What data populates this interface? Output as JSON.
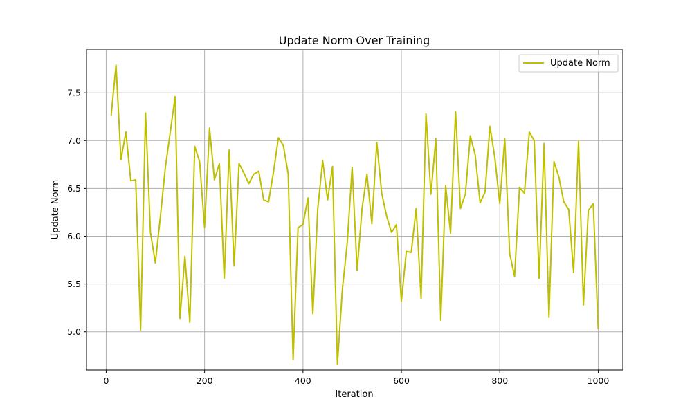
{
  "chart_data": {
    "type": "line",
    "title": "Update Norm Over Training",
    "xlabel": "Iteration",
    "ylabel": "Update Norm",
    "xlim": [
      -40,
      1050
    ],
    "ylim": [
      4.6,
      7.95
    ],
    "xticks": [
      0,
      200,
      400,
      600,
      800,
      1000
    ],
    "yticks": [
      5.0,
      5.5,
      6.0,
      6.5,
      7.0,
      7.5
    ],
    "xtick_labels": [
      "0",
      "200",
      "400",
      "600",
      "800",
      "1000"
    ],
    "ytick_labels": [
      "5.0",
      "5.5",
      "6.0",
      "6.5",
      "7.0",
      "7.5"
    ],
    "grid": true,
    "legend_position": "top-right",
    "series": [
      {
        "name": "Update Norm",
        "color": "#bfbf00",
        "x": [
          10,
          20,
          30,
          40,
          50,
          60,
          70,
          80,
          90,
          100,
          110,
          120,
          130,
          140,
          150,
          160,
          170,
          180,
          190,
          200,
          210,
          220,
          230,
          240,
          250,
          260,
          270,
          280,
          290,
          300,
          310,
          320,
          330,
          340,
          350,
          360,
          370,
          380,
          390,
          400,
          410,
          420,
          430,
          440,
          450,
          460,
          470,
          480,
          490,
          500,
          510,
          520,
          530,
          540,
          550,
          560,
          570,
          580,
          590,
          600,
          610,
          620,
          630,
          640,
          650,
          660,
          670,
          680,
          690,
          700,
          710,
          720,
          730,
          740,
          750,
          760,
          770,
          780,
          790,
          800,
          810,
          820,
          830,
          840,
          850,
          860,
          870,
          880,
          890,
          900,
          910,
          920,
          930,
          940,
          950,
          960,
          970,
          980,
          990,
          1000
        ],
        "y": [
          7.26,
          7.79,
          6.8,
          7.09,
          6.58,
          6.59,
          5.02,
          7.29,
          6.04,
          5.72,
          6.2,
          6.71,
          7.08,
          7.46,
          5.14,
          5.79,
          5.1,
          6.94,
          6.78,
          6.09,
          7.13,
          6.59,
          6.76,
          5.56,
          6.9,
          5.69,
          6.76,
          6.66,
          6.55,
          6.65,
          6.68,
          6.38,
          6.36,
          6.67,
          7.03,
          6.95,
          6.65,
          4.71,
          6.09,
          6.12,
          6.4,
          5.19,
          6.29,
          6.79,
          6.38,
          6.73,
          4.66,
          5.44,
          5.93,
          6.72,
          5.64,
          6.29,
          6.65,
          6.13,
          6.98,
          6.45,
          6.21,
          6.04,
          6.12,
          5.32,
          5.84,
          5.83,
          6.29,
          5.35,
          7.28,
          6.44,
          7.02,
          5.12,
          6.53,
          6.03,
          7.3,
          6.29,
          6.44,
          7.05,
          6.85,
          6.35,
          6.46,
          7.15,
          6.82,
          6.34,
          7.02,
          5.82,
          5.58,
          6.51,
          6.45,
          7.09,
          7.0,
          5.56,
          6.97,
          5.15,
          6.78,
          6.62,
          6.36,
          6.28,
          5.62,
          6.99,
          5.28,
          6.27,
          6.34,
          5.03
        ]
      }
    ]
  }
}
